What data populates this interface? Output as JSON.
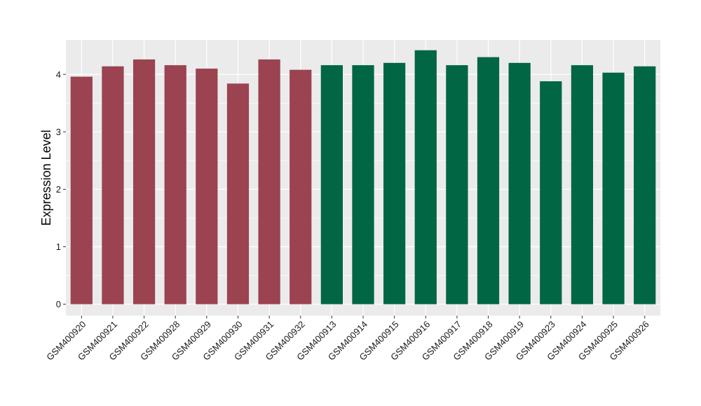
{
  "chart_data": {
    "type": "bar",
    "title": "",
    "xlabel": "",
    "ylabel": "Expression Level",
    "ylim": [
      -0.2,
      4.6
    ],
    "yticks": [
      0,
      1,
      2,
      3,
      4
    ],
    "grid": true,
    "legend": "none",
    "categories": [
      "GSM400920",
      "GSM400921",
      "GSM400922",
      "GSM400928",
      "GSM400929",
      "GSM400930",
      "GSM400931",
      "GSM400932",
      "GSM400913",
      "GSM400914",
      "GSM400915",
      "GSM400916",
      "GSM400917",
      "GSM400918",
      "GSM400919",
      "GSM400923",
      "GSM400924",
      "GSM400925",
      "GSM400926"
    ],
    "values": [
      3.96,
      4.14,
      4.26,
      4.16,
      4.1,
      3.84,
      4.26,
      4.08,
      4.16,
      4.16,
      4.2,
      4.42,
      4.16,
      4.3,
      4.2,
      3.88,
      4.16,
      4.03,
      4.14
    ],
    "bar_colors": [
      "#9b4350",
      "#9b4350",
      "#9b4350",
      "#9b4350",
      "#9b4350",
      "#9b4350",
      "#9b4350",
      "#9b4350",
      "#006644",
      "#006644",
      "#006644",
      "#006644",
      "#006644",
      "#006644",
      "#006644",
      "#006644",
      "#006644",
      "#006644",
      "#006644"
    ],
    "panel_background": "#ebebeb",
    "grid_color": "#ffffff"
  }
}
